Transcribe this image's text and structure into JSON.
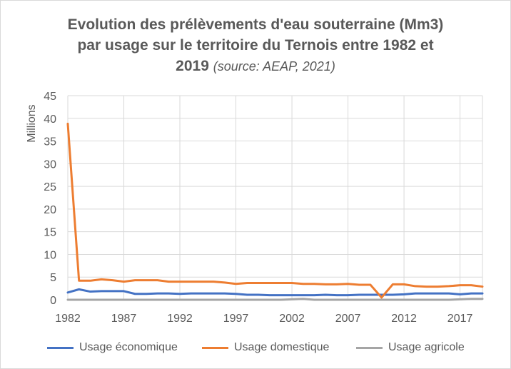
{
  "chart_data": {
    "type": "line",
    "title_line1": "Evolution des prélèvements d'eau souterraine (Mm3)",
    "title_line2": "par usage sur le territoire du Ternois entre 1982 et",
    "title_line3": "2019",
    "title_source": "(source: AEAP, 2021)",
    "ylabel": "Millions",
    "xlabel": "",
    "ylim": [
      0,
      45
    ],
    "yticks": [
      "0",
      "5",
      "10",
      "15",
      "20",
      "25",
      "30",
      "35",
      "40",
      "45"
    ],
    "xticks": [
      "1982",
      "1987",
      "1992",
      "1997",
      "2002",
      "2007",
      "2012",
      "2017"
    ],
    "grid": true,
    "legend_position": "bottom",
    "x": [
      1982,
      1983,
      1984,
      1985,
      1986,
      1987,
      1988,
      1989,
      1990,
      1991,
      1992,
      1993,
      1994,
      1995,
      1996,
      1997,
      1998,
      1999,
      2000,
      2001,
      2002,
      2003,
      2004,
      2005,
      2006,
      2007,
      2008,
      2009,
      2010,
      2011,
      2012,
      2013,
      2014,
      2015,
      2016,
      2017,
      2018,
      2019
    ],
    "series": [
      {
        "name": "Usage économique",
        "color": "#4472c4",
        "values": [
          1.6,
          2.3,
          1.8,
          1.9,
          1.9,
          1.9,
          1.3,
          1.3,
          1.4,
          1.4,
          1.3,
          1.4,
          1.4,
          1.4,
          1.4,
          1.3,
          1.1,
          1.1,
          1.0,
          1.0,
          1.0,
          1.0,
          1.0,
          1.1,
          1.0,
          1.0,
          1.1,
          1.1,
          1.1,
          1.1,
          1.2,
          1.4,
          1.4,
          1.4,
          1.4,
          1.2,
          1.4,
          1.4
        ]
      },
      {
        "name": "Usage domestique",
        "color": "#ed7d31",
        "values": [
          38.8,
          4.2,
          4.2,
          4.5,
          4.3,
          4.0,
          4.3,
          4.3,
          4.3,
          4.0,
          4.0,
          4.0,
          4.0,
          4.0,
          3.8,
          3.5,
          3.7,
          3.7,
          3.7,
          3.7,
          3.7,
          3.5,
          3.5,
          3.4,
          3.4,
          3.5,
          3.3,
          3.3,
          0.5,
          3.4,
          3.4,
          3.0,
          2.9,
          2.9,
          3.0,
          3.2,
          3.2,
          2.9
        ]
      },
      {
        "name": "Usage agricole",
        "color": "#a5a5a5",
        "values": [
          0.0,
          0.0,
          0.0,
          0.0,
          0.0,
          0.0,
          0.0,
          0.0,
          0.0,
          0.0,
          0.0,
          0.0,
          0.0,
          0.0,
          0.0,
          0.0,
          0.0,
          0.0,
          0.0,
          0.0,
          0.1,
          0.2,
          0.0,
          0.0,
          0.0,
          0.0,
          0.0,
          0.0,
          0.0,
          0.0,
          0.0,
          0.0,
          0.0,
          0.0,
          0.0,
          0.1,
          0.2,
          0.2
        ]
      }
    ]
  }
}
